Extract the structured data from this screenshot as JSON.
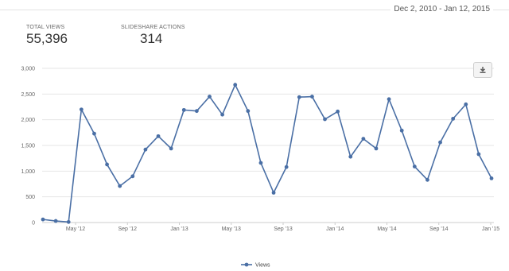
{
  "header": {
    "date_range": "Dec 2, 2010 - Jan 12, 2015"
  },
  "stats": {
    "total_views_label": "TOTAL VIEWS",
    "total_views_value": "55,396",
    "actions_label": "SLIDESHARE ACTIONS",
    "actions_value": "314"
  },
  "toolbar": {
    "download_icon": "download-icon"
  },
  "colors": {
    "series": "#4a6fa5",
    "grid": "#e6e6e6",
    "axis": "#cccccc"
  },
  "chart_data": {
    "type": "line",
    "title": "",
    "xlabel": "",
    "ylabel": "",
    "ylim": [
      0,
      3000
    ],
    "y_ticks": [
      "0",
      "500",
      "1,000",
      "1,500",
      "2,000",
      "2,500",
      "3,000"
    ],
    "x_tick_labels": [
      "May '12",
      "Sep '12",
      "Jan '13",
      "May '13",
      "Sep '13",
      "Jan '14",
      "May '14",
      "Sep '14",
      "Jan '15"
    ],
    "grid": true,
    "legend": "bottom-center",
    "series": [
      {
        "name": "Views",
        "values": [
          60,
          30,
          10,
          2200,
          1730,
          1130,
          710,
          900,
          1420,
          1680,
          1440,
          2190,
          2170,
          2450,
          2100,
          2680,
          2170,
          1160,
          580,
          1080,
          2440,
          2450,
          2010,
          2160,
          1280,
          1630,
          1440,
          2400,
          1790,
          1090,
          830,
          1560,
          2020,
          2300,
          1330,
          860
        ]
      }
    ]
  }
}
